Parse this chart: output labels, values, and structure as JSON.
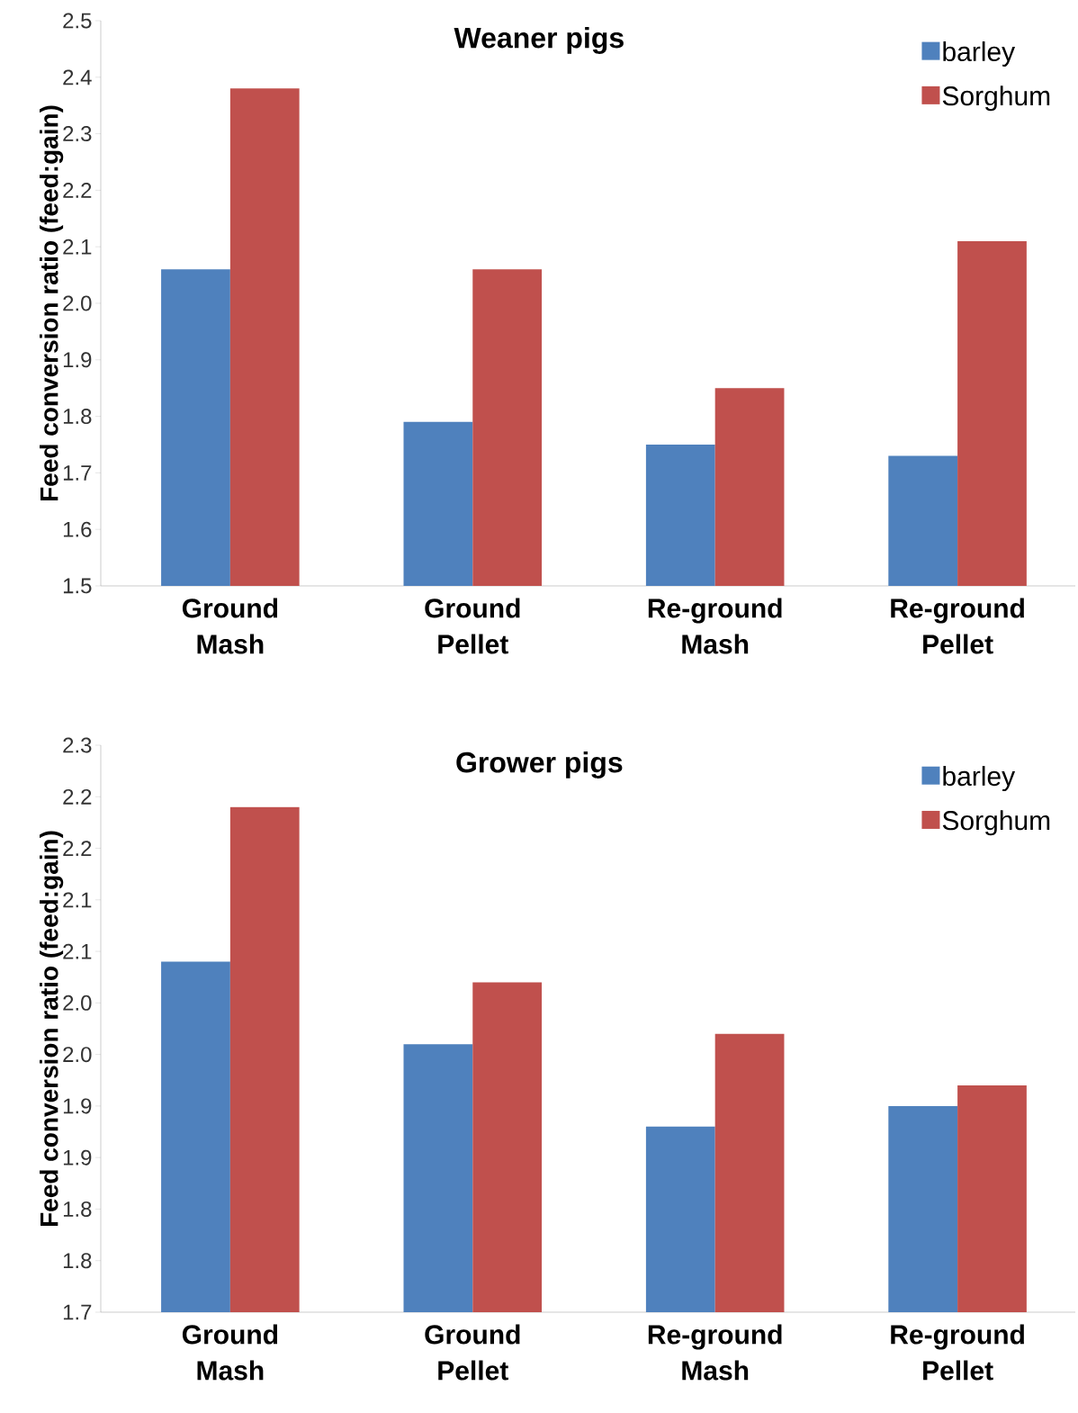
{
  "chart_data": [
    {
      "type": "bar",
      "title": "Weaner pigs",
      "ylabel": "Feed conversion ratio (feed:gain)",
      "categories": [
        "Ground Mash",
        "Ground Pellet",
        "Re-ground Mash",
        "Re-ground Pellet"
      ],
      "series": [
        {
          "name": "barley",
          "color": "#4f81bd",
          "values": [
            2.06,
            1.79,
            1.75,
            1.73
          ]
        },
        {
          "name": "Sorghum",
          "color": "#c0504d",
          "values": [
            2.38,
            2.06,
            1.85,
            2.11
          ]
        }
      ],
      "ylim": [
        1.5,
        2.5
      ],
      "yticks": [
        {
          "value": 1.5,
          "label": "1.5"
        },
        {
          "value": 1.6,
          "label": "1.6"
        },
        {
          "value": 1.7,
          "label": "1.7"
        },
        {
          "value": 1.8,
          "label": "1.8"
        },
        {
          "value": 1.9,
          "label": "1.9"
        },
        {
          "value": 2.0,
          "label": "2.0"
        },
        {
          "value": 2.1,
          "label": "2.1"
        },
        {
          "value": 2.2,
          "label": "2.2"
        },
        {
          "value": 2.3,
          "label": "2.3"
        },
        {
          "value": 2.4,
          "label": "2.4"
        },
        {
          "value": 2.5,
          "label": "2.5"
        }
      ],
      "legend": "top right",
      "grid": false
    },
    {
      "type": "bar",
      "title": "Grower pigs",
      "ylabel": "Feed conversion ratio (feed:gain)",
      "categories": [
        "Ground Mash",
        "Ground Pellet",
        "Re-ground Mash",
        "Re-ground Pellet"
      ],
      "series": [
        {
          "name": "barley",
          "color": "#4f81bd",
          "values": [
            2.04,
            1.96,
            1.88,
            1.9
          ]
        },
        {
          "name": "Sorghum",
          "color": "#c0504d",
          "values": [
            2.19,
            2.02,
            1.97,
            1.92
          ]
        }
      ],
      "ylim": [
        1.7,
        2.25
      ],
      "yticks": [
        {
          "value": 1.7,
          "label": "1.7"
        },
        {
          "value": 1.75,
          "label": "1.8"
        },
        {
          "value": 1.8,
          "label": "1.8"
        },
        {
          "value": 1.85,
          "label": "1.9"
        },
        {
          "value": 1.9,
          "label": "1.9"
        },
        {
          "value": 1.95,
          "label": "2.0"
        },
        {
          "value": 2.0,
          "label": "2.0"
        },
        {
          "value": 2.05,
          "label": "2.1"
        },
        {
          "value": 2.1,
          "label": "2.1"
        },
        {
          "value": 2.15,
          "label": "2.2"
        },
        {
          "value": 2.2,
          "label": "2.2"
        },
        {
          "value": 2.25,
          "label": "2.3"
        }
      ],
      "legend": "top right",
      "grid": false
    }
  ]
}
